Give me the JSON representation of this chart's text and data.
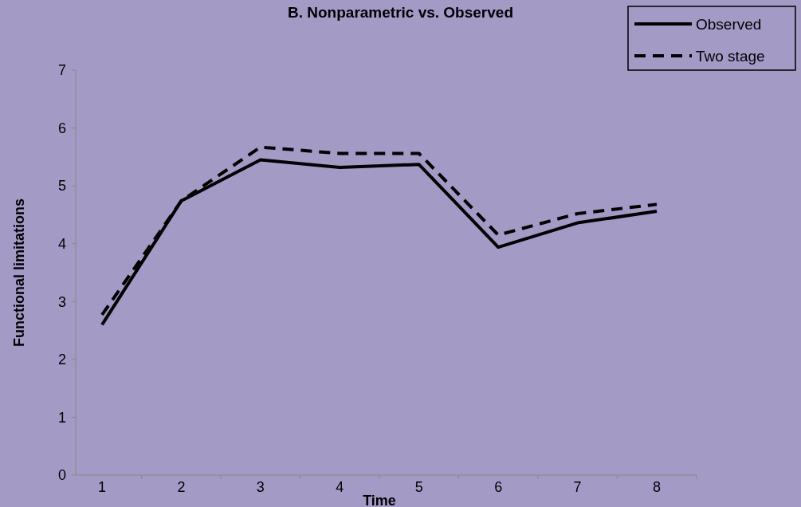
{
  "chart_data": {
    "type": "line",
    "title": "B. Nonparametric vs. Observed",
    "xlabel": "Time",
    "ylabel": "Functional limitations",
    "categories": [
      "1",
      "2",
      "3",
      "4",
      "5",
      "6",
      "7",
      "8"
    ],
    "series": [
      {
        "name": "Observed",
        "color": "#000000",
        "line_style": "solid",
        "values": [
          2.6,
          4.74,
          5.45,
          5.32,
          5.37,
          3.94,
          4.36,
          4.56
        ]
      },
      {
        "name": "Two stage",
        "color": "#000000",
        "line_style": "dashed",
        "values": [
          2.77,
          4.74,
          5.67,
          5.56,
          5.56,
          4.15,
          4.52,
          4.68
        ]
      }
    ],
    "ylim": [
      0,
      7
    ],
    "yticks": [
      0,
      1,
      2,
      3,
      4,
      5,
      6,
      7
    ],
    "grid": false,
    "legend": "top right",
    "marker": "none"
  }
}
